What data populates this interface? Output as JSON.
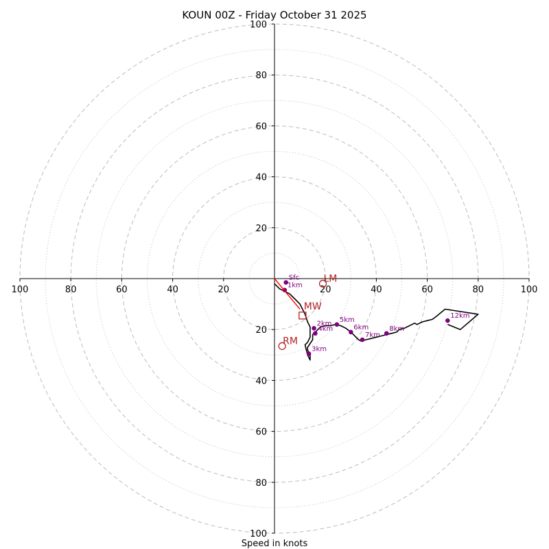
{
  "chart_data": {
    "type": "hodograph",
    "title": "KOUN 00Z - Friday October 31 2025",
    "xlabel": "Speed in knots",
    "units": "knots",
    "xlim": [
      -100,
      100
    ],
    "ylim": [
      -100,
      100
    ],
    "ring_major": [
      20,
      40,
      60,
      80,
      100
    ],
    "ring_minor": [
      10,
      30,
      50,
      70,
      90
    ],
    "x_tick_labels": [
      "100",
      "80",
      "60",
      "40",
      "20",
      "20",
      "40",
      "60",
      "80",
      "100"
    ],
    "y_tick_labels": [
      "100",
      "80",
      "60",
      "40",
      "20",
      "20",
      "40",
      "60",
      "80",
      "100"
    ],
    "x_tick_values": [
      -100,
      -80,
      -60,
      -40,
      -20,
      20,
      40,
      60,
      80,
      100
    ],
    "y_tick_values": [
      100,
      80,
      60,
      40,
      20,
      -20,
      -40,
      -60,
      -80,
      -100
    ],
    "colors": {
      "trace": "#000000",
      "heights": "#800080",
      "storm": "#b22222",
      "grid": "#bbbbbb",
      "axis": "#000000"
    },
    "wind_trace": [
      [
        0,
        -2
      ],
      [
        2,
        -4
      ],
      [
        4,
        -5
      ],
      [
        6,
        -6
      ],
      [
        7,
        -7
      ],
      [
        10,
        -10
      ],
      [
        12,
        -14
      ],
      [
        13,
        -17
      ],
      [
        14,
        -19
      ],
      [
        14,
        -21
      ],
      [
        14,
        -23
      ],
      [
        13,
        -25
      ],
      [
        12,
        -26
      ],
      [
        13,
        -30
      ],
      [
        14,
        -32
      ],
      [
        14,
        -30
      ],
      [
        13,
        -28
      ],
      [
        13,
        -27
      ],
      [
        15,
        -24
      ],
      [
        15,
        -22
      ],
      [
        16,
        -21
      ],
      [
        18,
        -19
      ],
      [
        20,
        -18.5
      ],
      [
        22,
        -18.5
      ],
      [
        24,
        -18
      ],
      [
        26,
        -18.5
      ],
      [
        28,
        -19.5
      ],
      [
        30,
        -21
      ],
      [
        31,
        -22
      ],
      [
        32,
        -23
      ],
      [
        33,
        -24
      ],
      [
        34,
        -24.5
      ],
      [
        36,
        -24
      ],
      [
        38,
        -23.5
      ],
      [
        40,
        -23
      ],
      [
        42,
        -22.5
      ],
      [
        44,
        -22
      ],
      [
        46,
        -21.5
      ],
      [
        48,
        -21
      ],
      [
        49,
        -20
      ],
      [
        51,
        -19.5
      ],
      [
        52,
        -19
      ],
      [
        54,
        -18
      ],
      [
        55,
        -17.5
      ],
      [
        56,
        -18
      ],
      [
        58,
        -17
      ],
      [
        60,
        -16.5
      ],
      [
        62,
        -16
      ],
      [
        64,
        -14.5
      ],
      [
        67,
        -12
      ],
      [
        80,
        -14
      ],
      [
        73,
        -20
      ],
      [
        68,
        -18
      ]
    ],
    "height_points": [
      {
        "label": "Sfc",
        "u": 4.5,
        "v": -1.5
      },
      {
        "label": "1km",
        "u": 4,
        "v": -4.5
      },
      {
        "label": "2km",
        "u": 15.5,
        "v": -19.5
      },
      {
        "label": "3km",
        "u": 13.5,
        "v": -29.5
      },
      {
        "label": "4km",
        "u": 16,
        "v": -21.5
      },
      {
        "label": "5km",
        "u": 24.5,
        "v": -18
      },
      {
        "label": "6km",
        "u": 30,
        "v": -21
      },
      {
        "label": "7km",
        "u": 34.5,
        "v": -24
      },
      {
        "label": "8km",
        "u": 44,
        "v": -21.5
      },
      {
        "label": "12km",
        "u": 68,
        "v": -16.5
      }
    ],
    "storm_motion": {
      "lm": {
        "label": "LM",
        "u": 19,
        "v": -2
      },
      "mw": {
        "label": "MW",
        "u": 11,
        "v": -14.5
      },
      "rm": {
        "label": "RM",
        "u": 3,
        "v": -26.5
      },
      "shear_vector": [
        [
          0,
          0
        ],
        [
          10,
          -12
        ]
      ]
    }
  }
}
